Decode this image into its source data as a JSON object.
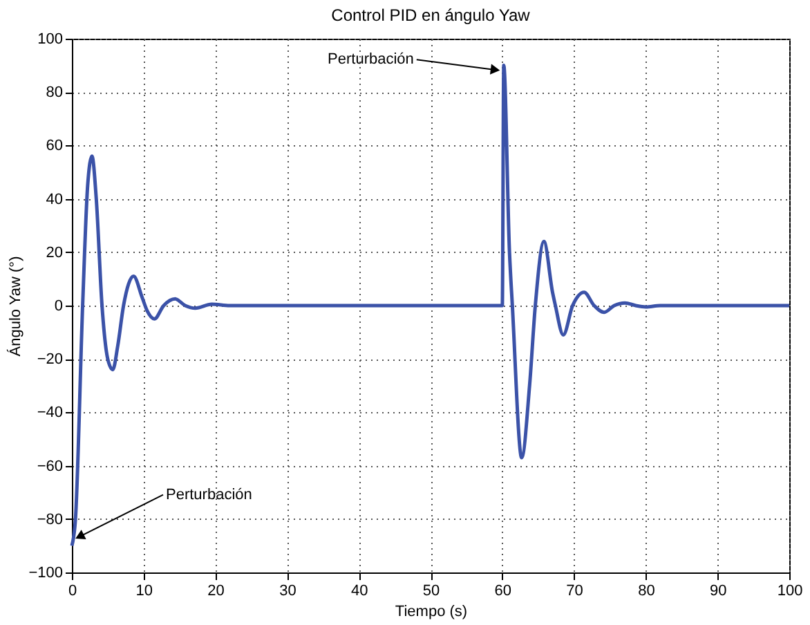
{
  "chart_data": {
    "type": "line",
    "title": "Control PID en ángulo Yaw",
    "xlabel": "Tiempo (s)",
    "ylabel": "Ángulo Yaw (°)",
    "xlim": [
      0,
      100
    ],
    "xticks": [
      0,
      10,
      20,
      30,
      40,
      50,
      60,
      70,
      80,
      90,
      100
    ],
    "ylim": [
      -100,
      100
    ],
    "yticks": [
      -100,
      -80,
      -60,
      -40,
      -20,
      0,
      20,
      40,
      60,
      80,
      100
    ],
    "grid": true,
    "line_style": "solid",
    "marker": "none",
    "series": [
      {
        "color": "#3b52a8",
        "x": [
          0,
          0.5,
          1.5,
          2.2,
          2.8,
          3.4,
          4.2,
          5,
          5.7,
          6.4,
          7.2,
          8.6,
          9.8,
          10.5,
          11.5,
          12.8,
          14.4,
          15.8,
          17.2,
          19.5,
          22,
          60,
          60.2,
          61,
          61.4,
          62.7,
          63.8,
          64.6,
          65.8,
          67,
          67.4,
          68.5,
          69.8,
          71.4,
          72.8,
          74.2,
          75.6,
          77.1,
          78.6,
          80,
          82,
          100
        ],
        "values": [
          -90,
          -80,
          0,
          45,
          56,
          40,
          0,
          -20,
          -24,
          -15,
          0,
          11,
          3,
          -2,
          -5,
          0,
          2.5,
          0,
          -1,
          0.5,
          0,
          0,
          90,
          20,
          0,
          -57,
          -30,
          0,
          24,
          5,
          0,
          -11,
          0,
          5,
          0,
          -2.5,
          0,
          1,
          0,
          -0.5,
          0,
          0
        ]
      }
    ],
    "annotations": [
      {
        "text": "Perturbación",
        "x": 0,
        "y": -88
      },
      {
        "text": "Perturbación",
        "x": 60,
        "y": 88
      }
    ]
  }
}
